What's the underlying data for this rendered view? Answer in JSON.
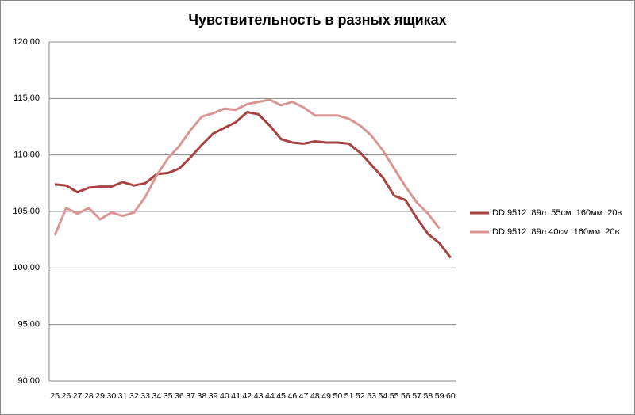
{
  "chart_data": {
    "type": "line",
    "title": "Чувствительность в разных ящиках",
    "categories": [
      "25",
      "26",
      "27",
      "28",
      "29",
      "30",
      "31",
      "32",
      "33",
      "34",
      "35",
      "36",
      "37",
      "38",
      "39",
      "40",
      "41",
      "42",
      "43",
      "44",
      "45",
      "46",
      "47",
      "48",
      "49",
      "50",
      "51",
      "52",
      "53",
      "54",
      "55",
      "56",
      "57",
      "58",
      "59",
      "60"
    ],
    "series": [
      {
        "name": "DD 9512  89л  55см  160мм  20в",
        "color": "#a84341",
        "values": [
          107.4,
          107.3,
          106.7,
          107.1,
          107.2,
          107.2,
          107.6,
          107.3,
          107.5,
          108.3,
          108.4,
          108.8,
          109.8,
          110.9,
          111.9,
          112.4,
          112.9,
          113.8,
          113.6,
          112.6,
          111.4,
          111.1,
          111.0,
          111.2,
          111.1,
          111.1,
          111.0,
          110.2,
          109.1,
          108.0,
          106.4,
          106.0,
          104.4,
          103.0,
          102.2,
          100.9
        ]
      },
      {
        "name": "DD 9512  89л 40см  160мм  20в",
        "color": "#d99694",
        "values": [
          102.9,
          105.3,
          104.8,
          105.3,
          104.3,
          104.9,
          104.6,
          104.9,
          106.3,
          108.2,
          109.7,
          110.8,
          112.2,
          113.4,
          113.7,
          114.1,
          114.0,
          114.5,
          114.7,
          114.9,
          114.4,
          114.7,
          114.2,
          113.5,
          113.5,
          113.5,
          113.2,
          112.6,
          111.7,
          110.4,
          108.8,
          107.2,
          105.8,
          104.8,
          103.5,
          null
        ]
      }
    ],
    "ylim": [
      90,
      120
    ],
    "yticks": [
      {
        "value": 90,
        "label": "90,00"
      },
      {
        "value": 95,
        "label": "95,00"
      },
      {
        "value": 100,
        "label": "100,00"
      },
      {
        "value": 105,
        "label": "105,00"
      },
      {
        "value": 110,
        "label": "110,00"
      },
      {
        "value": 115,
        "label": "115,00"
      },
      {
        "value": 120,
        "label": "120,00"
      }
    ],
    "grid": true,
    "legend": "right"
  }
}
